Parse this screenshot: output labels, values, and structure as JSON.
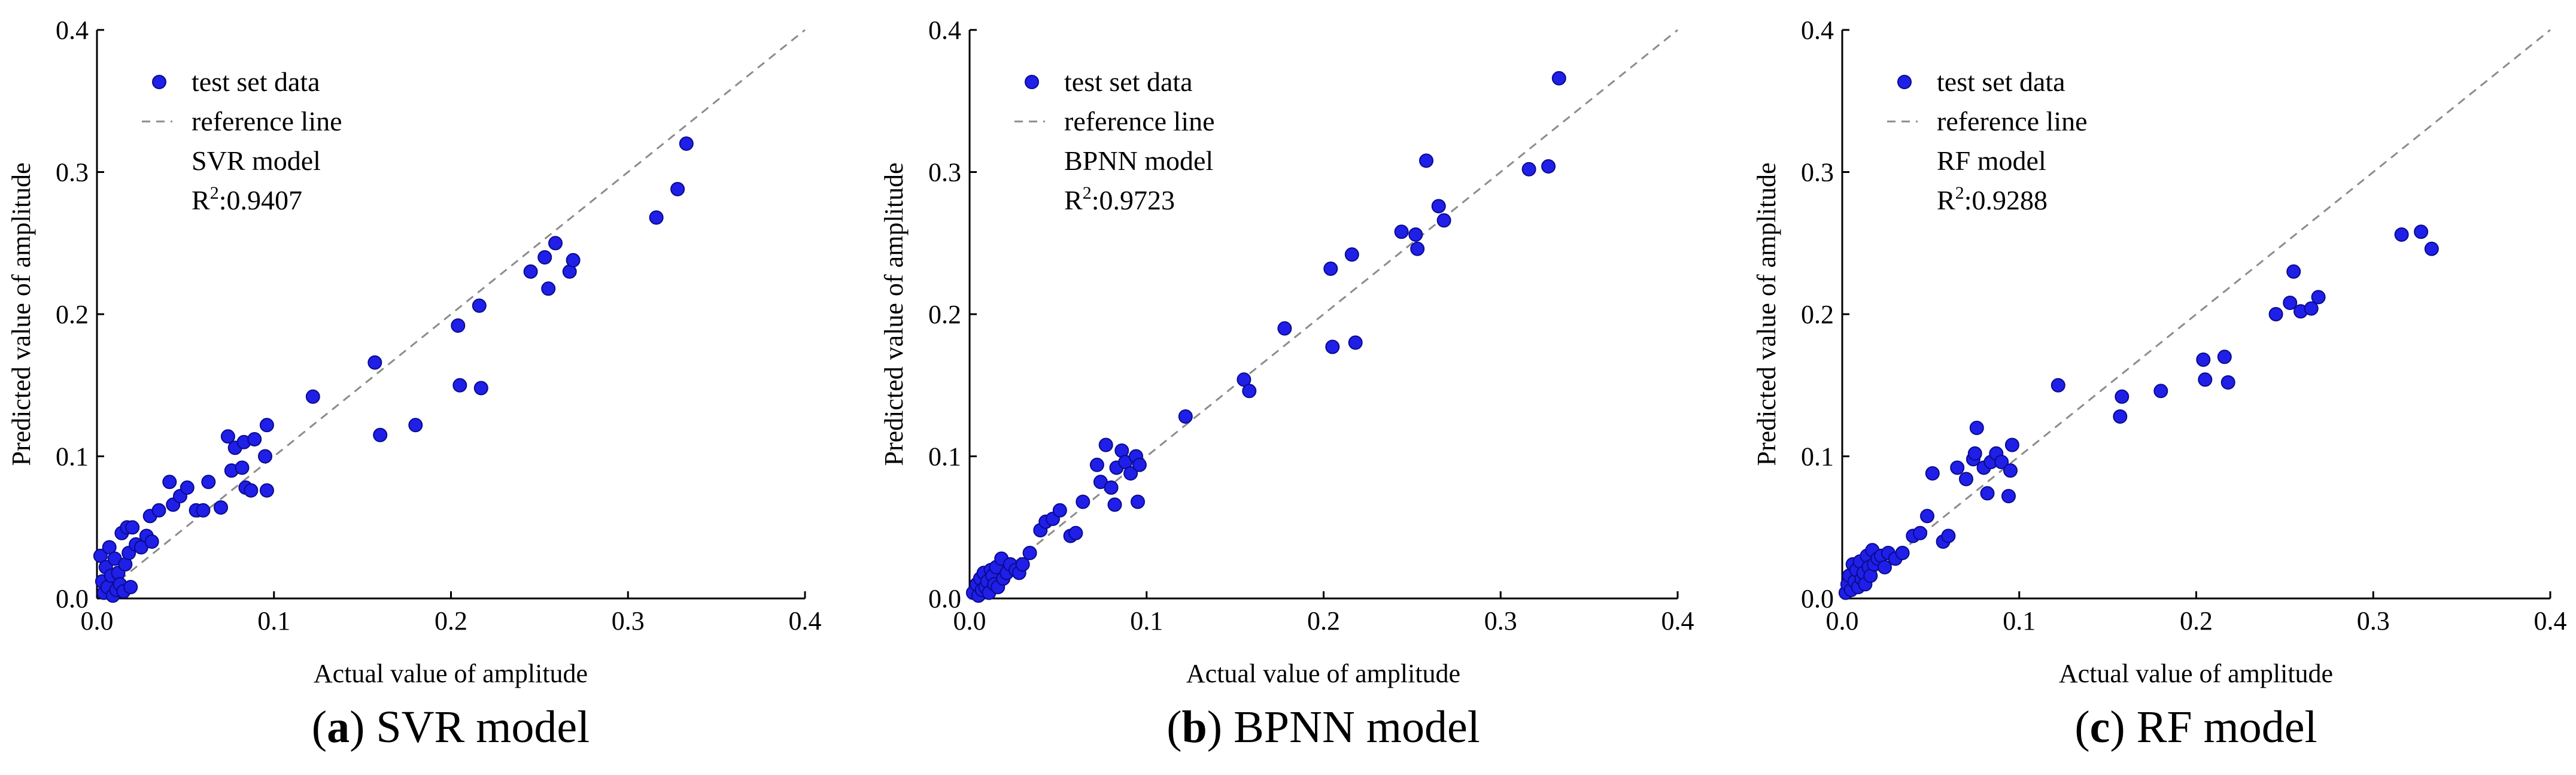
{
  "colors": {
    "point": "#1f1fe8",
    "point_edge": "#0a0a8c",
    "reference": "#8c8c8c"
  },
  "chart_data": [
    {
      "type": "scatter",
      "id": "svr",
      "legend": {
        "points": "test set data",
        "line": "reference line",
        "model": "SVR model",
        "r2_prefix": "R",
        "r2_sup": "2",
        "r2_value": ":0.9407"
      },
      "caption": {
        "open": "(",
        "letter": "a",
        "rest": ") SVR model"
      },
      "xlabel": "Actual value of amplitude",
      "ylabel": "Predicted value of amplitude",
      "xlim": [
        0,
        0.4
      ],
      "ylim": [
        0,
        0.4
      ],
      "xticks": [
        "0.0",
        "0.1",
        "0.2",
        "0.3",
        "0.4"
      ],
      "yticks": [
        "0.0",
        "0.1",
        "0.2",
        "0.3",
        "0.4"
      ],
      "reference_line": [
        [
          0,
          0
        ],
        [
          0.4,
          0.4
        ]
      ],
      "points": [
        [
          0.002,
          0.03
        ],
        [
          0.003,
          0.012
        ],
        [
          0.004,
          0.004
        ],
        [
          0.005,
          0.022
        ],
        [
          0.006,
          0.008
        ],
        [
          0.007,
          0.036
        ],
        [
          0.008,
          0.016
        ],
        [
          0.009,
          0.002
        ],
        [
          0.01,
          0.028
        ],
        [
          0.011,
          0.006
        ],
        [
          0.012,
          0.018
        ],
        [
          0.013,
          0.01
        ],
        [
          0.014,
          0.046
        ],
        [
          0.015,
          0.005
        ],
        [
          0.016,
          0.024
        ],
        [
          0.017,
          0.05
        ],
        [
          0.018,
          0.032
        ],
        [
          0.019,
          0.008
        ],
        [
          0.02,
          0.05
        ],
        [
          0.022,
          0.038
        ],
        [
          0.025,
          0.036
        ],
        [
          0.028,
          0.044
        ],
        [
          0.03,
          0.058
        ],
        [
          0.031,
          0.04
        ],
        [
          0.035,
          0.062
        ],
        [
          0.041,
          0.082
        ],
        [
          0.043,
          0.066
        ],
        [
          0.047,
          0.072
        ],
        [
          0.051,
          0.078
        ],
        [
          0.056,
          0.062
        ],
        [
          0.06,
          0.062
        ],
        [
          0.063,
          0.082
        ],
        [
          0.07,
          0.064
        ],
        [
          0.074,
          0.114
        ],
        [
          0.076,
          0.09
        ],
        [
          0.078,
          0.106
        ],
        [
          0.082,
          0.092
        ],
        [
          0.083,
          0.11
        ],
        [
          0.084,
          0.078
        ],
        [
          0.087,
          0.076
        ],
        [
          0.089,
          0.112
        ],
        [
          0.095,
          0.1
        ],
        [
          0.096,
          0.122
        ],
        [
          0.096,
          0.076
        ],
        [
          0.122,
          0.142
        ],
        [
          0.157,
          0.166
        ],
        [
          0.16,
          0.115
        ],
        [
          0.18,
          0.122
        ],
        [
          0.204,
          0.192
        ],
        [
          0.205,
          0.15
        ],
        [
          0.216,
          0.206
        ],
        [
          0.217,
          0.148
        ],
        [
          0.245,
          0.23
        ],
        [
          0.253,
          0.24
        ],
        [
          0.255,
          0.218
        ],
        [
          0.259,
          0.25
        ],
        [
          0.267,
          0.23
        ],
        [
          0.269,
          0.238
        ],
        [
          0.316,
          0.268
        ],
        [
          0.328,
          0.288
        ],
        [
          0.333,
          0.32
        ]
      ]
    },
    {
      "type": "scatter",
      "id": "bpnn",
      "legend": {
        "points": "test set data",
        "line": "reference line",
        "model": "BPNN model",
        "r2_prefix": "R",
        "r2_sup": "2",
        "r2_value": ":0.9723"
      },
      "caption": {
        "open": "(",
        "letter": "b",
        "rest": ") BPNN model"
      },
      "xlabel": "Actual value of amplitude",
      "ylabel": "Predicted value of amplitude",
      "xlim": [
        0,
        0.4
      ],
      "ylim": [
        0,
        0.4
      ],
      "xticks": [
        "0.0",
        "0.1",
        "0.2",
        "0.3",
        "0.4"
      ],
      "yticks": [
        "0.0",
        "0.1",
        "0.2",
        "0.3",
        "0.4"
      ],
      "reference_line": [
        [
          0,
          0
        ],
        [
          0.4,
          0.4
        ]
      ],
      "points": [
        [
          0.002,
          0.004
        ],
        [
          0.004,
          0.01
        ],
        [
          0.005,
          0.002
        ],
        [
          0.006,
          0.014
        ],
        [
          0.007,
          0.006
        ],
        [
          0.008,
          0.018
        ],
        [
          0.009,
          0.008
        ],
        [
          0.01,
          0.012
        ],
        [
          0.011,
          0.004
        ],
        [
          0.012,
          0.02
        ],
        [
          0.013,
          0.016
        ],
        [
          0.014,
          0.01
        ],
        [
          0.015,
          0.022
        ],
        [
          0.016,
          0.008
        ],
        [
          0.018,
          0.028
        ],
        [
          0.019,
          0.014
        ],
        [
          0.021,
          0.018
        ],
        [
          0.023,
          0.024
        ],
        [
          0.026,
          0.02
        ],
        [
          0.028,
          0.018
        ],
        [
          0.03,
          0.024
        ],
        [
          0.034,
          0.032
        ],
        [
          0.04,
          0.048
        ],
        [
          0.043,
          0.054
        ],
        [
          0.047,
          0.056
        ],
        [
          0.051,
          0.062
        ],
        [
          0.057,
          0.044
        ],
        [
          0.06,
          0.046
        ],
        [
          0.064,
          0.068
        ],
        [
          0.072,
          0.094
        ],
        [
          0.074,
          0.082
        ],
        [
          0.077,
          0.108
        ],
        [
          0.08,
          0.078
        ],
        [
          0.082,
          0.066
        ],
        [
          0.083,
          0.092
        ],
        [
          0.086,
          0.104
        ],
        [
          0.088,
          0.096
        ],
        [
          0.091,
          0.088
        ],
        [
          0.094,
          0.1
        ],
        [
          0.095,
          0.068
        ],
        [
          0.096,
          0.094
        ],
        [
          0.122,
          0.128
        ],
        [
          0.155,
          0.154
        ],
        [
          0.158,
          0.146
        ],
        [
          0.178,
          0.19
        ],
        [
          0.204,
          0.232
        ],
        [
          0.205,
          0.177
        ],
        [
          0.216,
          0.242
        ],
        [
          0.218,
          0.18
        ],
        [
          0.244,
          0.258
        ],
        [
          0.252,
          0.256
        ],
        [
          0.253,
          0.246
        ],
        [
          0.258,
          0.308
        ],
        [
          0.265,
          0.276
        ],
        [
          0.268,
          0.266
        ],
        [
          0.316,
          0.302
        ],
        [
          0.327,
          0.304
        ],
        [
          0.333,
          0.366
        ]
      ]
    },
    {
      "type": "scatter",
      "id": "rf",
      "legend": {
        "points": "test set data",
        "line": "reference line",
        "model": "RF model",
        "r2_prefix": "R",
        "r2_sup": "2",
        "r2_value": ":0.9288"
      },
      "caption": {
        "open": "(",
        "letter": "c",
        "rest": ") RF model"
      },
      "xlabel": "Actual value of amplitude",
      "ylabel": "Predicted value of amplitude",
      "xlim": [
        0,
        0.4
      ],
      "ylim": [
        0,
        0.4
      ],
      "xticks": [
        "0.0",
        "0.1",
        "0.2",
        "0.3",
        "0.4"
      ],
      "yticks": [
        "0.0",
        "0.1",
        "0.2",
        "0.3",
        "0.4"
      ],
      "reference_line": [
        [
          0,
          0
        ],
        [
          0.4,
          0.4
        ]
      ],
      "points": [
        [
          0.002,
          0.004
        ],
        [
          0.003,
          0.01
        ],
        [
          0.004,
          0.016
        ],
        [
          0.005,
          0.006
        ],
        [
          0.006,
          0.024
        ],
        [
          0.007,
          0.012
        ],
        [
          0.008,
          0.02
        ],
        [
          0.009,
          0.008
        ],
        [
          0.01,
          0.026
        ],
        [
          0.011,
          0.014
        ],
        [
          0.012,
          0.018
        ],
        [
          0.013,
          0.01
        ],
        [
          0.014,
          0.03
        ],
        [
          0.015,
          0.022
        ],
        [
          0.016,
          0.016
        ],
        [
          0.017,
          0.034
        ],
        [
          0.018,
          0.024
        ],
        [
          0.02,
          0.028
        ],
        [
          0.022,
          0.03
        ],
        [
          0.024,
          0.022
        ],
        [
          0.026,
          0.032
        ],
        [
          0.03,
          0.028
        ],
        [
          0.034,
          0.032
        ],
        [
          0.04,
          0.044
        ],
        [
          0.044,
          0.046
        ],
        [
          0.048,
          0.058
        ],
        [
          0.051,
          0.088
        ],
        [
          0.057,
          0.04
        ],
        [
          0.06,
          0.044
        ],
        [
          0.065,
          0.092
        ],
        [
          0.07,
          0.084
        ],
        [
          0.074,
          0.098
        ],
        [
          0.075,
          0.102
        ],
        [
          0.076,
          0.12
        ],
        [
          0.08,
          0.092
        ],
        [
          0.082,
          0.074
        ],
        [
          0.084,
          0.096
        ],
        [
          0.087,
          0.102
        ],
        [
          0.09,
          0.096
        ],
        [
          0.094,
          0.072
        ],
        [
          0.095,
          0.09
        ],
        [
          0.096,
          0.108
        ],
        [
          0.122,
          0.15
        ],
        [
          0.157,
          0.128
        ],
        [
          0.158,
          0.142
        ],
        [
          0.18,
          0.146
        ],
        [
          0.204,
          0.168
        ],
        [
          0.205,
          0.154
        ],
        [
          0.216,
          0.17
        ],
        [
          0.218,
          0.152
        ],
        [
          0.245,
          0.2
        ],
        [
          0.253,
          0.208
        ],
        [
          0.255,
          0.23
        ],
        [
          0.259,
          0.202
        ],
        [
          0.265,
          0.204
        ],
        [
          0.269,
          0.212
        ],
        [
          0.316,
          0.256
        ],
        [
          0.327,
          0.258
        ],
        [
          0.333,
          0.246
        ]
      ]
    }
  ]
}
